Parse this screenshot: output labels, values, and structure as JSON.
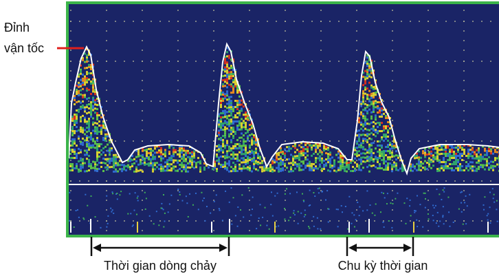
{
  "annotations": {
    "peak_velocity": [
      "Đỉnh",
      "vận tốc"
    ],
    "flow_time": "Thời gian dòng chảy",
    "cycle_time": "Chu kỳ thời gian"
  }
}
